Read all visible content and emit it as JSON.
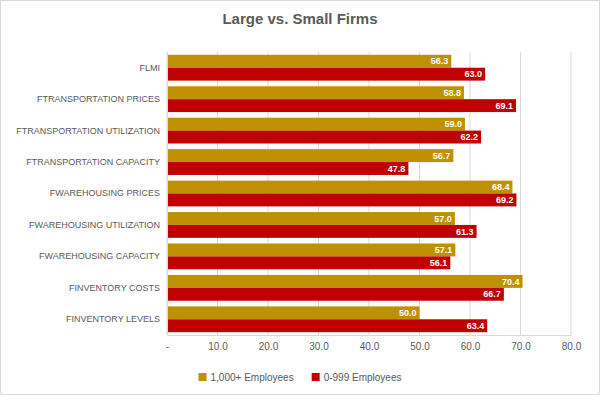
{
  "chart_data": {
    "type": "bar",
    "orientation": "horizontal",
    "title": "Large vs. Small Firms",
    "categories": [
      "FLMI",
      "FTRANSPORTATION PRICES",
      "FTRANSPORTATION UTILIZATION",
      "FTRANSPORTATION CAPACITY",
      "FWAREHOUSING PRICES",
      "FWAREHOUSING UTILIZATION",
      "FWAREHOUSING CAPACITY",
      "FINVENTORY COSTS",
      "FINVENTORY LEVELS"
    ],
    "series": [
      {
        "name": "1,000+ Employees",
        "color": "#bf9000",
        "values": [
          56.3,
          58.8,
          59.0,
          56.7,
          68.4,
          57.0,
          57.1,
          70.4,
          50.0
        ],
        "value_labels": [
          "56.3",
          "58.8",
          "59.0",
          "56.7",
          "68.4",
          "57.0",
          "57.1",
          "70.4",
          "50.0"
        ]
      },
      {
        "name": "0-999 Employees",
        "color": "#c00000",
        "values": [
          63.0,
          69.1,
          62.2,
          47.8,
          69.2,
          61.3,
          56.1,
          66.7,
          63.4
        ],
        "value_labels": [
          "63.0",
          "69.1",
          "62.2",
          "47.8",
          "69.2",
          "61.3",
          "56.1",
          "66.7",
          "63.4"
        ]
      }
    ],
    "xlim": [
      0,
      80
    ],
    "xticks": [
      {
        "value": 0,
        "label": "-"
      },
      {
        "value": 10,
        "label": "10.0"
      },
      {
        "value": 20,
        "label": "20.0"
      },
      {
        "value": 30,
        "label": "30.0"
      },
      {
        "value": 40,
        "label": "40.0"
      },
      {
        "value": 50,
        "label": "50.0"
      },
      {
        "value": 60,
        "label": "60.0"
      },
      {
        "value": 70,
        "label": "70.0"
      },
      {
        "value": 80,
        "label": "80.0"
      }
    ],
    "grid": true,
    "legend": "bottom",
    "data_labels": true
  }
}
